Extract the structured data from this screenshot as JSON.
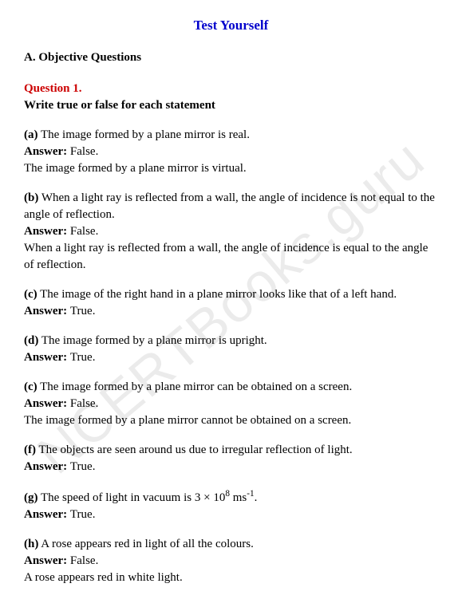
{
  "watermark": "NCERTBooks.guru",
  "title": "Test Yourself",
  "sectionHead": "A. Objective Questions",
  "questionNum": "Question 1.",
  "questionTitle": "Write true or false for each statement",
  "items": [
    {
      "label": "(a)",
      "text": " The image formed by a plane mirror is real.",
      "answer": "False.",
      "explain": "The image formed by a plane mirror is virtual."
    },
    {
      "label": "(b)",
      "text": " When a light ray is reflected from a wall, the angle of incidence is not equal to the angle of reflection.",
      "answer": "False.",
      "explain": "When a light ray is reflected from a wall, the angle of incidence is equal to the angle of reflection."
    },
    {
      "label": "(c)",
      "text": " The image of the right hand in a plane mirror looks like that of a left hand.",
      "answer": "True.",
      "explain": ""
    },
    {
      "label": "(d)",
      "text": " The image formed by a plane mirror is upright.",
      "answer": "True.",
      "explain": ""
    },
    {
      "label": "(c)",
      "text": " The image formed by a plane mirror can be obtained on a screen.",
      "answer": "False.",
      "explain": "The image formed by a plane mirror cannot be obtained on a screen."
    },
    {
      "label": "(f)",
      "text": " The objects are seen around us due to irregular reflection of light.",
      "answer": "True.",
      "explain": ""
    },
    {
      "label": "(g)",
      "text": " The speed of light in vacuum is 3 × 10",
      "sup": "8",
      "textAfter": " ms",
      "sup2": "-1",
      "textEnd": ".",
      "answer": "True.",
      "explain": ""
    },
    {
      "label": "(h)",
      "text": " A rose appears red in light of all the colours.",
      "answer": "False.",
      "explain": "A rose appears red in white light."
    }
  ],
  "answerLabel": "Answer: "
}
